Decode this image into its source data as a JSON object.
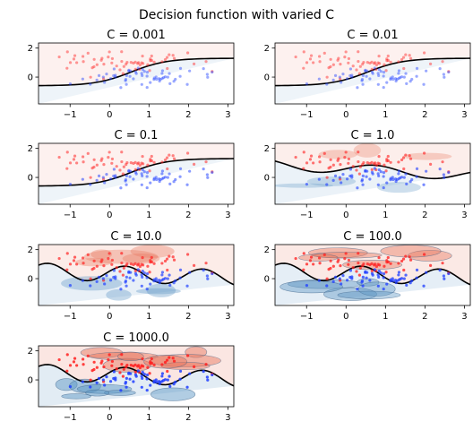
{
  "figure": {
    "suptitle": "Decision function with varied C"
  },
  "colors": {
    "red_points": "#ff2020",
    "blue_points": "#2040ff",
    "boundary": "#000000",
    "red_fill": "#e8775e",
    "blue_fill": "#5d96c4"
  },
  "chart_data": [
    {
      "type": "scatter",
      "title": "C = 0.001",
      "xlim": [
        -1.8,
        3.15
      ],
      "ylim": [
        -1.85,
        2.35
      ],
      "xticks": [
        -1,
        0,
        1,
        2,
        3
      ],
      "yticks": [
        0,
        2
      ],
      "xlabel": "",
      "ylabel": "",
      "grid": false,
      "legend": "none",
      "boundary": "smooth",
      "level": 0,
      "series": [
        {
          "class": "red",
          "center": [
            0.3,
            1.0
          ],
          "spread": [
            0.8,
            0.4
          ],
          "count": 60
        },
        {
          "class": "blue",
          "center": [
            1.0,
            0.0
          ],
          "spread": [
            0.8,
            0.35
          ],
          "count": 60
        }
      ]
    },
    {
      "type": "scatter",
      "title": "C = 0.01",
      "xlim": [
        -1.8,
        3.15
      ],
      "ylim": [
        -1.85,
        2.35
      ],
      "xticks": [
        -1,
        0,
        1,
        2,
        3
      ],
      "yticks": [
        0,
        2
      ],
      "xlabel": "",
      "ylabel": "",
      "grid": false,
      "legend": "none",
      "boundary": "smooth",
      "level": 0
    },
    {
      "type": "scatter",
      "title": "C = 0.1",
      "xlim": [
        -1.8,
        3.15
      ],
      "ylim": [
        -1.85,
        2.35
      ],
      "xticks": [
        -1,
        0,
        1,
        2,
        3
      ],
      "yticks": [
        0,
        2
      ],
      "xlabel": "",
      "ylabel": "",
      "grid": false,
      "legend": "none",
      "boundary": "smooth",
      "level": 1
    },
    {
      "type": "scatter",
      "title": "C = 1.0",
      "xlim": [
        -1.8,
        3.15
      ],
      "ylim": [
        -1.85,
        2.35
      ],
      "xticks": [
        -1,
        0,
        1,
        2,
        3
      ],
      "yticks": [
        0,
        2
      ],
      "xlabel": "",
      "ylabel": "",
      "grid": false,
      "legend": "none",
      "boundary": "wavy",
      "level": 2
    },
    {
      "type": "scatter",
      "title": "C = 10.0",
      "xlim": [
        -1.8,
        3.15
      ],
      "ylim": [
        -1.85,
        2.35
      ],
      "xticks": [
        -1,
        0,
        1,
        2,
        3
      ],
      "yticks": [
        0,
        2
      ],
      "xlabel": "",
      "ylabel": "",
      "grid": false,
      "legend": "none",
      "boundary": "complex",
      "level": 3
    },
    {
      "type": "scatter",
      "title": "C = 100.0",
      "xlim": [
        -1.8,
        3.15
      ],
      "ylim": [
        -1.85,
        2.35
      ],
      "xticks": [
        -1,
        0,
        1,
        2,
        3
      ],
      "yticks": [
        0,
        2
      ],
      "xlabel": "",
      "ylabel": "",
      "grid": false,
      "legend": "none",
      "boundary": "complex",
      "level": 4
    },
    {
      "type": "scatter",
      "title": "C = 1000.0",
      "xlim": [
        -1.8,
        3.15
      ],
      "ylim": [
        -1.85,
        2.35
      ],
      "xticks": [
        -1,
        0,
        1,
        2,
        3
      ],
      "yticks": [
        0,
        2
      ],
      "xlabel": "",
      "ylabel": "",
      "grid": false,
      "legend": "none",
      "boundary": "complex",
      "level": 5
    }
  ]
}
